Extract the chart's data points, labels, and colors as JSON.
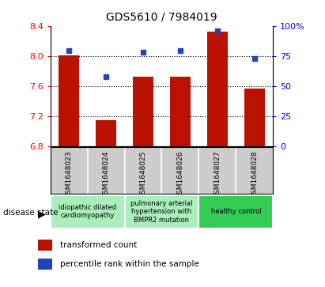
{
  "title": "GDS5610 / 7984019",
  "samples": [
    "GSM1648023",
    "GSM1648024",
    "GSM1648025",
    "GSM1648026",
    "GSM1648027",
    "GSM1648028"
  ],
  "bar_values": [
    8.01,
    7.15,
    7.73,
    7.73,
    8.32,
    7.57
  ],
  "percentile_values": [
    8.07,
    7.73,
    8.05,
    8.07,
    8.33,
    7.97
  ],
  "bar_bottom": 6.8,
  "ylim_left": [
    6.8,
    8.4
  ],
  "ylim_right": [
    0,
    100
  ],
  "bar_color": "#BB1100",
  "dot_color": "#2244BB",
  "yticks_left": [
    6.8,
    7.2,
    7.6,
    8.0,
    8.4
  ],
  "yticks_right": [
    0,
    25,
    50,
    75,
    100
  ],
  "ytick_labels_right": [
    "0",
    "25",
    "50",
    "75",
    "100%"
  ],
  "grid_lines": [
    8.0,
    7.6,
    7.2
  ],
  "disease_states": [
    {
      "label": "idiopathic dilated\ncardiomyopathy",
      "start": 0,
      "end": 2,
      "color": "#aaeebb"
    },
    {
      "label": "pulmonary arterial\nhypertension with\nBMPR2 mutation",
      "start": 2,
      "end": 4,
      "color": "#aaeebb"
    },
    {
      "label": "healthy control",
      "start": 4,
      "end": 6,
      "color": "#33cc55"
    }
  ],
  "legend_bar_label": "transformed count",
  "legend_dot_label": "percentile rank within the sample",
  "disease_state_label": "disease state",
  "bar_width": 0.55,
  "background_color": "#ffffff",
  "plot_bg_color": "#ffffff",
  "tick_area_color": "#cccccc"
}
